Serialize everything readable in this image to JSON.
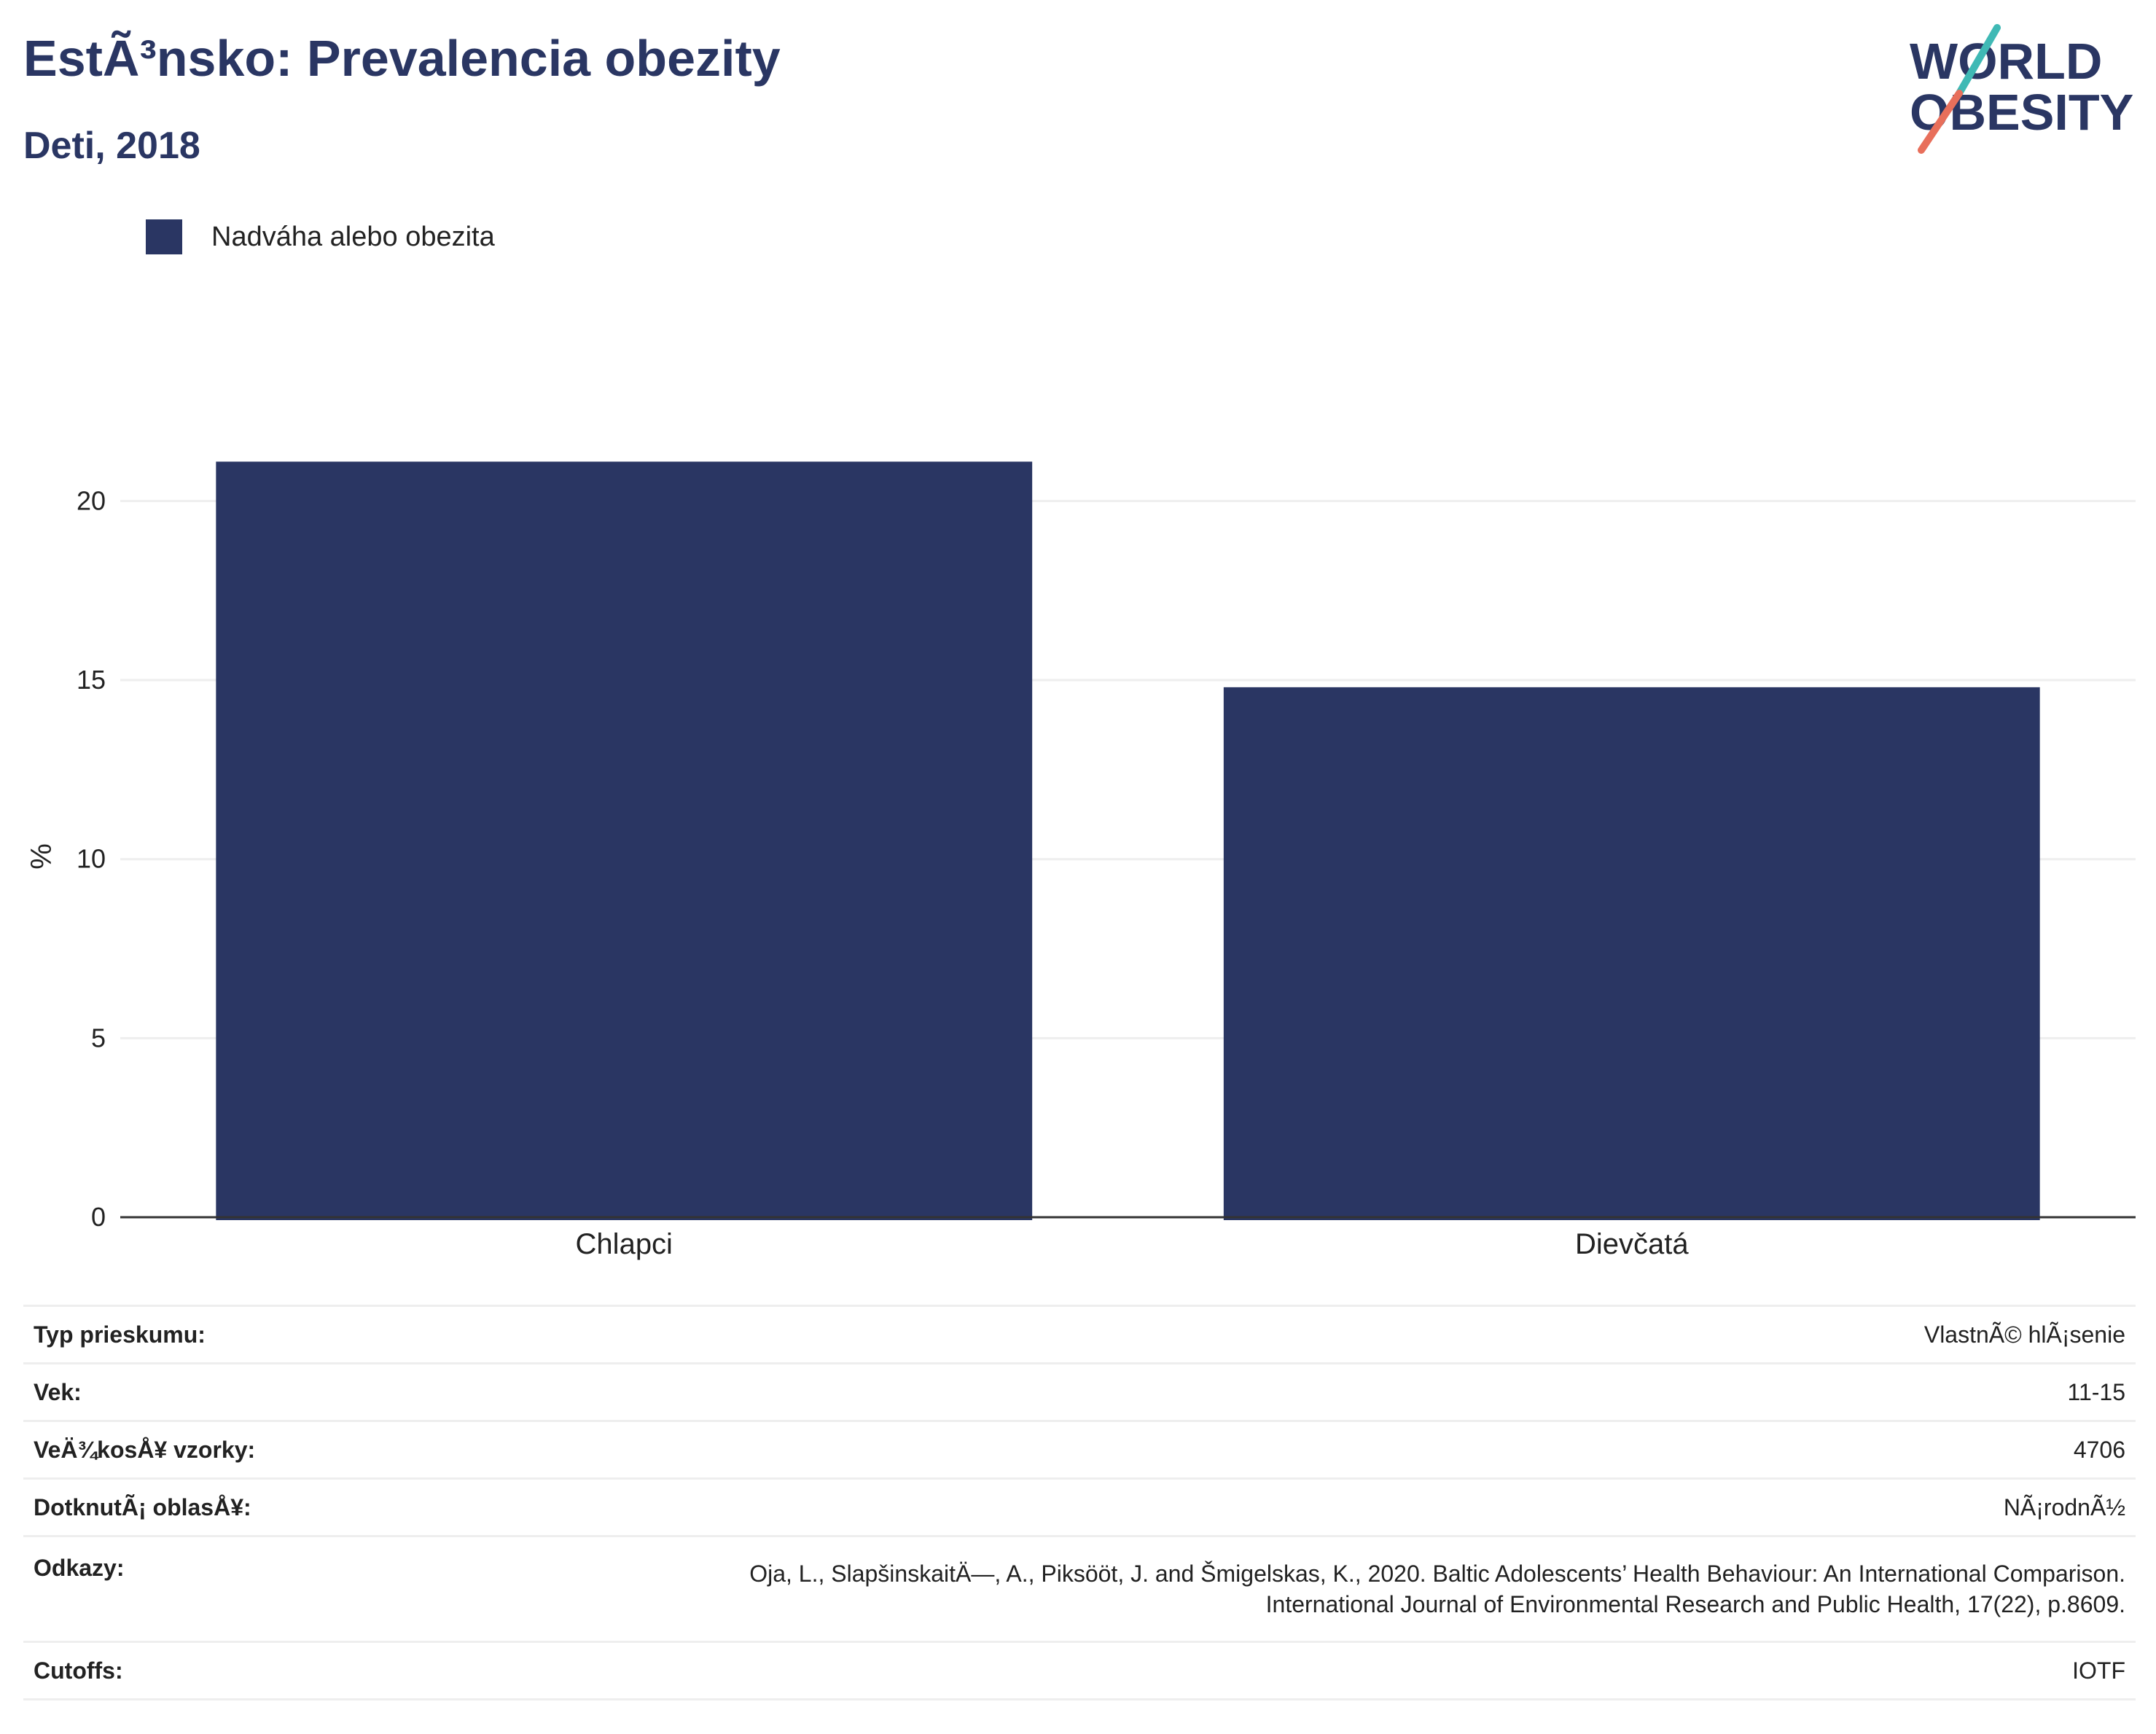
{
  "title": "EstÃ³nsko: Prevalencia obezity",
  "subtitle": "Deti, 2018",
  "logo": {
    "line1": "WORLD",
    "line2": "OBESITY",
    "colors": {
      "text": "#2a3663",
      "slash_top": "#3fb9b5",
      "slash_bottom": "#e86f5b"
    }
  },
  "legend": {
    "label": "Nadváha alebo obezita",
    "color": "#2a3663"
  },
  "chart_data": {
    "type": "bar",
    "categories": [
      "Chlapci",
      "Dievčatá"
    ],
    "series": [
      {
        "name": "Nadváha alebo obezita",
        "values": [
          21.1,
          14.8
        ],
        "color": "#2a3663"
      }
    ],
    "xlabel": "",
    "ylabel": "%",
    "ylim": [
      0,
      23
    ],
    "yticks": [
      0,
      5,
      10,
      15,
      20
    ],
    "grid": true,
    "legend_position": "top-left"
  },
  "info": {
    "survey_type": {
      "label": "Typ prieskumu:",
      "value": "VlastnÃ© hlÃ¡senie"
    },
    "age": {
      "label": "Vek:",
      "value": "11-15"
    },
    "sample_size": {
      "label": "VeÄ¾kosÅ¥ vzorky:",
      "value": "4706"
    },
    "area": {
      "label": "DotknutÃ¡ oblasÅ¥:",
      "value": "NÃ¡rodnÃ½"
    },
    "references": {
      "label": "Odkazy:",
      "line1": "Oja, L., SlapšinskaitÄ—, A., Piksööt, J. and Šmigelskas, K., 2020. Baltic Adolescents’ Health Behaviour: An International Comparison.",
      "line2": "International Journal of Environmental Research and Public Health, 17(22), p.8609."
    },
    "cutoffs": {
      "label": "Cutoffs:",
      "value": "IOTF"
    }
  }
}
